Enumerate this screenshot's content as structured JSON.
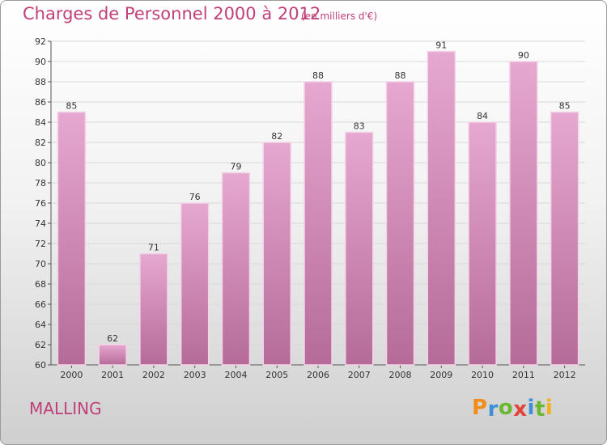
{
  "header": {
    "title": "Charges de Personnel 2000 à 2012",
    "subtitle": "(en milliers d'€)"
  },
  "footer": {
    "commune": "MALLING",
    "logo_letters": [
      "P",
      "r",
      "o",
      "x",
      "i",
      "t",
      "i"
    ],
    "logo_colors": [
      "#f28c1a",
      "#3c8fd8",
      "#69b82f",
      "#e0423a",
      "#3c8fd8",
      "#69b82f",
      "#f2b21a"
    ]
  },
  "colors": {
    "bar_top": "#e6a8d0",
    "bar_bottom": "#b56b98",
    "bar_edge": "#f3d3e6",
    "accent": "#c0407a"
  },
  "chart_data": {
    "type": "bar",
    "categories": [
      "2000",
      "2001",
      "2002",
      "2003",
      "2004",
      "2005",
      "2006",
      "2007",
      "2008",
      "2009",
      "2010",
      "2011",
      "2012"
    ],
    "values": [
      85,
      62,
      71,
      76,
      79,
      82,
      88,
      83,
      88,
      91,
      84,
      90,
      85
    ],
    "ylim": [
      60,
      92
    ],
    "yticks": [
      60,
      62,
      64,
      66,
      68,
      70,
      72,
      74,
      76,
      78,
      80,
      82,
      84,
      86,
      88,
      90,
      92
    ],
    "grid": true,
    "data_labels": true
  }
}
